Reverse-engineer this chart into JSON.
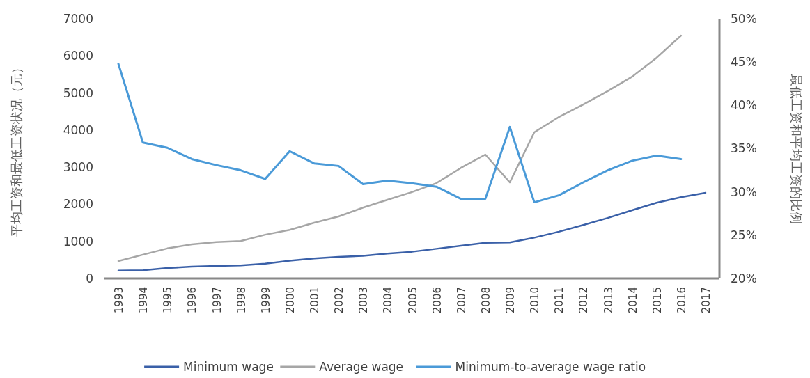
{
  "chart_data": {
    "type": "line",
    "ylabel": "平均工资和最低工资状况（元）",
    "y2label": "最低工资和平均工资的比例",
    "categories": [
      "1993",
      "1994",
      "1995",
      "1996",
      "1997",
      "1998",
      "1999",
      "2000",
      "2001",
      "2002",
      "2003",
      "2004",
      "2005",
      "2006",
      "2007",
      "2008",
      "2009",
      "2010",
      "2011",
      "2012",
      "2013",
      "2014",
      "2015",
      "2016",
      "2017"
    ],
    "series": [
      {
        "name": "Minimum wage",
        "color": "#3a60a8",
        "values": [
          210,
          220,
          280,
          320,
          340,
          350,
          400,
          480,
          540,
          580,
          610,
          670,
          720,
          800,
          880,
          960,
          970,
          1100,
          1260,
          1440,
          1630,
          1840,
          2040,
          2190,
          2310
        ]
      },
      {
        "name": "Average wage",
        "color": "#a6a6a6",
        "values": [
          470,
          640,
          810,
          920,
          980,
          1010,
          1180,
          1310,
          1500,
          1670,
          1910,
          2120,
          2330,
          2570,
          2980,
          3340,
          2590,
          3940,
          4350,
          4690,
          5050,
          5440,
          5950,
          6550,
          null
        ]
      },
      {
        "name": "Minimum-to-average wage ratio",
        "color": "#4a9ad8",
        "axis": "y2",
        "values": [
          44.8,
          35.7,
          35.1,
          33.8,
          33.1,
          32.5,
          31.5,
          34.7,
          33.3,
          33.0,
          30.9,
          31.3,
          31.0,
          30.6,
          29.2,
          29.2,
          37.5,
          28.8,
          29.6,
          31.1,
          32.5,
          33.6,
          34.2,
          33.8,
          null
        ]
      }
    ],
    "ylim": [
      0,
      7000
    ],
    "yticks": [
      0,
      1000,
      2000,
      3000,
      4000,
      5000,
      6000,
      7000
    ],
    "y2lim": [
      20,
      50
    ],
    "y2ticks": [
      {
        "value": 20,
        "label": "20%"
      },
      {
        "value": 25,
        "label": "25%"
      },
      {
        "value": 30,
        "label": "30%"
      },
      {
        "value": 35,
        "label": "35%"
      },
      {
        "value": 40,
        "label": "40%"
      },
      {
        "value": 45,
        "label": "45%"
      },
      {
        "value": 50,
        "label": "50%"
      }
    ],
    "legend": "bottom",
    "grid": false
  }
}
